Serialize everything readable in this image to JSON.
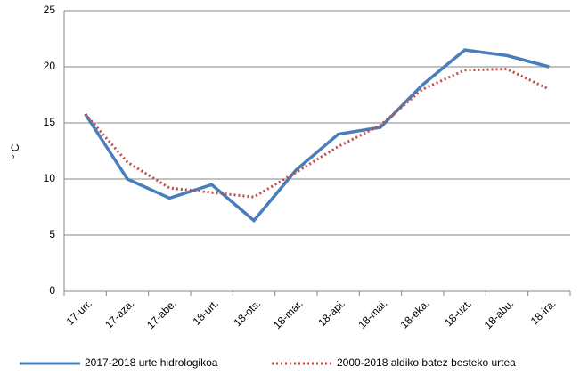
{
  "chart_data": {
    "type": "line",
    "y_label": "° C",
    "categories": [
      "17-urr.",
      "17-aza.",
      "17-abe.",
      "18-urt.",
      "18-ots.",
      "18-mar.",
      "18-api.",
      "18-mai.",
      "18-eka.",
      "18-uzt.",
      "18-abu.",
      "18-ira."
    ],
    "series": [
      {
        "name": "2017-2018 urte hidrologikoa",
        "color": "#4a7ebb",
        "style": "solid",
        "values": [
          15.8,
          10.0,
          8.3,
          9.5,
          6.3,
          10.8,
          14.0,
          14.6,
          18.4,
          21.5,
          21.0,
          20.0
        ]
      },
      {
        "name": "2000-2018 aldiko batez besteko urtea",
        "color": "#be4b48",
        "style": "dotted",
        "values": [
          15.8,
          11.5,
          9.2,
          8.8,
          8.4,
          10.6,
          12.9,
          14.8,
          18.0,
          19.7,
          19.8,
          18.0
        ]
      }
    ],
    "ylim": [
      0,
      25
    ],
    "yticks": [
      0,
      5,
      10,
      15,
      20,
      25
    ],
    "grid": true,
    "legend": "bottom"
  }
}
